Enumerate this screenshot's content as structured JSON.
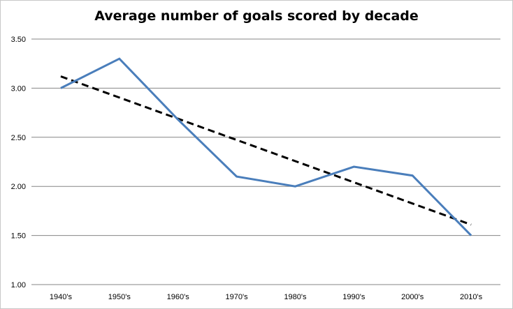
{
  "chart_data": {
    "type": "line",
    "title": "Average number of goals scored  by decade",
    "xlabel": "",
    "ylabel": "",
    "categories": [
      "1940's",
      "1950's",
      "1960's",
      "1970's",
      "1980's",
      "1990's",
      "2000's",
      "2010's"
    ],
    "series": [
      {
        "values": [
          3.0,
          3.3,
          2.68,
          2.1,
          2.0,
          2.2,
          2.11,
          1.5
        ],
        "color": "#4a7ebb",
        "style": "solid"
      }
    ],
    "trendline": {
      "type": "linear",
      "start": 3.12,
      "end": 1.61,
      "color": "#000000",
      "style": "dashed"
    },
    "ylim": [
      1.0,
      3.5
    ],
    "yticks": [
      "1.00",
      "1.50",
      "2.00",
      "2.50",
      "3.00",
      "3.50"
    ],
    "grid": true,
    "legend": "none"
  }
}
